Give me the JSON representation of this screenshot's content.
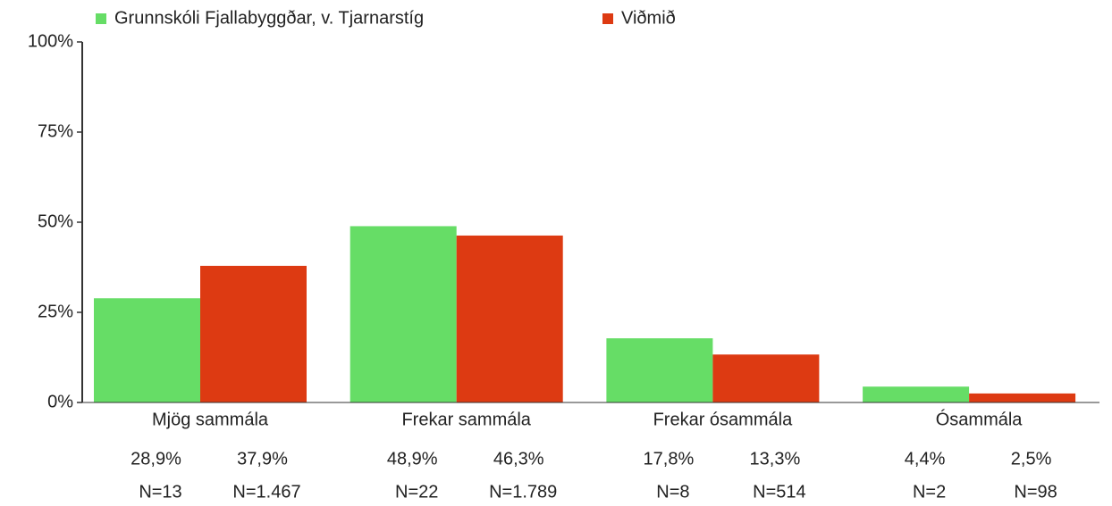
{
  "chart_data": {
    "type": "bar",
    "categories": [
      "Mjög sammála",
      "Frekar sammála",
      "Frekar ósammála",
      "Ósammála"
    ],
    "series": [
      {
        "name": "Grunnskóli Fjallabyggðar, v. Tjarnarstíg",
        "color": "#66dd66",
        "values": [
          28.9,
          48.9,
          17.8,
          4.4
        ],
        "value_labels": [
          "28,9%",
          "48,9%",
          "17,8%",
          "4,4%"
        ],
        "n_labels": [
          "N=13",
          "N=22",
          "N=8",
          "N=2"
        ]
      },
      {
        "name": "Viðmið",
        "color": "#dd3a12",
        "values": [
          37.9,
          46.3,
          13.3,
          2.5
        ],
        "value_labels": [
          "37,9%",
          "46,3%",
          "13,3%",
          "2,5%"
        ],
        "n_labels": [
          "N=1.467",
          "N=1.789",
          "N=514",
          "N=98"
        ]
      }
    ],
    "ylim": [
      0,
      100
    ],
    "yticks": [
      {
        "value": 0,
        "label": "0%"
      },
      {
        "value": 25,
        "label": "25%"
      },
      {
        "value": 50,
        "label": "50%"
      },
      {
        "value": 75,
        "label": "75%"
      },
      {
        "value": 100,
        "label": "100%"
      }
    ],
    "legend": "top"
  }
}
